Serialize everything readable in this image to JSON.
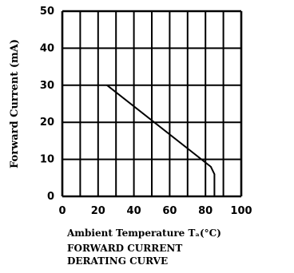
{
  "chart_data": {
    "type": "line",
    "xlabel": "Ambient Temperature Tₐ(°C)",
    "ylabel": "Forward Current (mA)",
    "xlim": [
      0,
      100
    ],
    "ylim": [
      0,
      50
    ],
    "x_ticks": [
      "0",
      "20",
      "40",
      "60",
      "80",
      "100"
    ],
    "y_ticks": [
      "0",
      "10",
      "20",
      "30",
      "40",
      "50"
    ],
    "grid": true,
    "series": [
      {
        "x": [
          25,
          83,
          85,
          85
        ],
        "y": [
          30,
          8,
          6,
          0
        ]
      }
    ],
    "caption": [
      "FORWARD CURRENT",
      "DERATING CURVE"
    ]
  },
  "colors": {
    "line": "#000000",
    "grid": "#000000",
    "background": "#ffffff"
  }
}
